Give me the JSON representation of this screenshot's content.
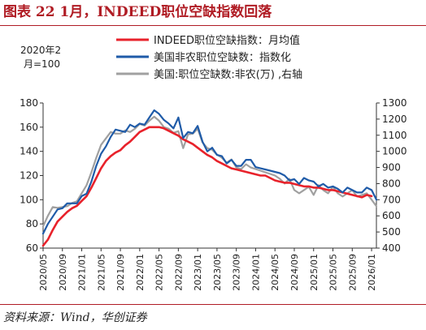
{
  "header": {
    "title": "图表 22 1月，INDEED职位空缺指数回落"
  },
  "footer": {
    "source": "资料来源：Wind，华创证券"
  },
  "chart_data": {
    "type": "line",
    "title": "图表 22 1月，INDEED职位空缺指数回落",
    "left_axis_note": [
      "2020年2",
      "月=100"
    ],
    "y_left": {
      "min": 60,
      "max": 180,
      "ticks": [
        60,
        80,
        100,
        120,
        140,
        160,
        180
      ]
    },
    "y_right": {
      "min": 400,
      "max": 1300,
      "ticks": [
        400,
        500,
        600,
        700,
        800,
        900,
        1000,
        1100,
        1200,
        1300
      ]
    },
    "x_ticks": [
      "2020/05",
      "2020/09",
      "2021/01",
      "2021/05",
      "2021/09",
      "2022/01",
      "2022/05",
      "2022/09",
      "2023/01",
      "2023/05",
      "2023/09",
      "2024/01",
      "2024/05",
      "2024/09",
      "2025/01",
      "2025/05",
      "2025/09",
      "2026/01"
    ],
    "x_start": "2020/05",
    "legend": {
      "placement": "top-right"
    },
    "grid": false,
    "series": [
      {
        "name": "INDEED职位空缺指数：月均值",
        "color": "#e8222b",
        "axis": "left",
        "values": [
          62,
          67,
          75,
          82,
          86,
          90,
          93,
          95,
          99,
          103,
          110,
          118,
          126,
          132,
          136,
          139,
          141,
          145,
          148,
          152,
          156,
          158,
          160,
          160,
          160,
          159,
          157,
          155,
          153,
          150,
          148,
          146,
          143,
          140,
          137,
          135,
          132,
          130,
          128,
          126,
          125,
          124,
          123,
          122,
          121,
          120,
          120,
          118,
          116,
          115,
          114,
          114,
          113,
          112,
          111,
          111,
          110,
          110,
          109,
          108,
          108,
          107,
          106,
          105,
          104,
          103,
          102,
          104,
          103
        ]
      },
      {
        "name": "美国非农职位空缺数：指数化",
        "color": "#1f5ba8",
        "axis": "left",
        "values": [
          72,
          80,
          86,
          92,
          93,
          97,
          97,
          97,
          103,
          105,
          115,
          128,
          138,
          144,
          152,
          158,
          157,
          156,
          162,
          160,
          163,
          162,
          168,
          174,
          171,
          166,
          163,
          159,
          168,
          151,
          156,
          155,
          161,
          148,
          140,
          143,
          137,
          136,
          130,
          133,
          128,
          128,
          133,
          133,
          127,
          126,
          125,
          124,
          123,
          122,
          120,
          116,
          117,
          113,
          118,
          116,
          115,
          111,
          113,
          110,
          111,
          109,
          106,
          110,
          108,
          106,
          106,
          110,
          108,
          100
        ]
      },
      {
        "name": "美国:职位空缺数:非农(万) ,右轴",
        "color": "#a0a0a0",
        "axis": "right",
        "values": [
          535,
          600,
          655,
          650,
          655,
          660,
          680,
          690,
          740,
          790,
          870,
          960,
          1040,
          1080,
          1120,
          1110,
          1110,
          1130,
          1120,
          1140,
          1170,
          1160,
          1190,
          1215,
          1190,
          1150,
          1140,
          1115,
          1125,
          1020,
          1105,
          1110,
          1140,
          1055,
          1020,
          1010,
          980,
          960,
          930,
          950,
          900,
          890,
          920,
          900,
          890,
          880,
          870,
          860,
          850,
          830,
          800,
          830,
          760,
          740,
          760,
          780,
          730,
          790,
          760,
          740,
          780,
          740,
          720,
          740,
          760,
          720,
          730,
          740,
          700,
          660
        ]
      }
    ]
  }
}
